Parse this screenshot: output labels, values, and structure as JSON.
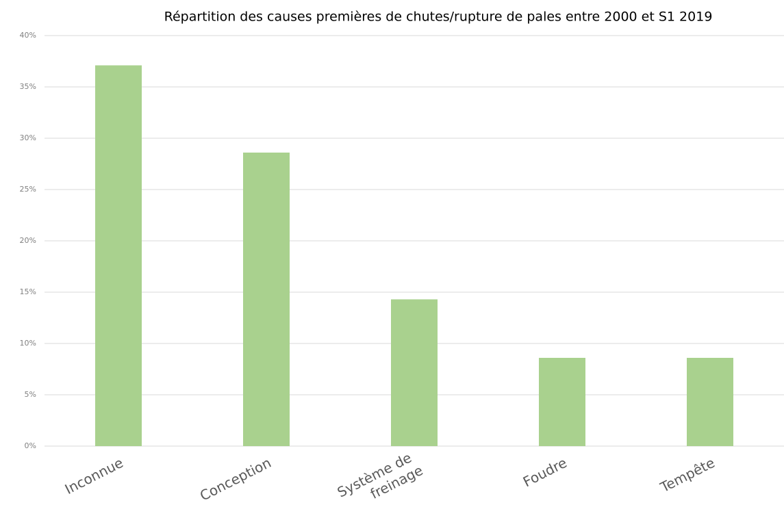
{
  "chart_data": {
    "type": "bar",
    "title": "Répartition des causes premières de chutes/rupture de pales entre 2000 et S1 2019",
    "categories": [
      "Inconnue",
      "Conception",
      "Système de freinage",
      "Foudre",
      "Tempête"
    ],
    "values": [
      37.1,
      28.6,
      14.3,
      8.6,
      8.6
    ],
    "color": "#a9d18e",
    "ylim": [
      0,
      40
    ],
    "yticks": [
      {
        "value": 0,
        "label": "0%"
      },
      {
        "value": 5,
        "label": "5%"
      },
      {
        "value": 10,
        "label": "10%"
      },
      {
        "value": 15,
        "label": "15%"
      },
      {
        "value": 20,
        "label": "20%"
      },
      {
        "value": 25,
        "label": "25%"
      },
      {
        "value": 30,
        "label": "30%"
      },
      {
        "value": 35,
        "label": "35%"
      },
      {
        "value": 40,
        "label": "40%"
      }
    ],
    "grid": true
  }
}
